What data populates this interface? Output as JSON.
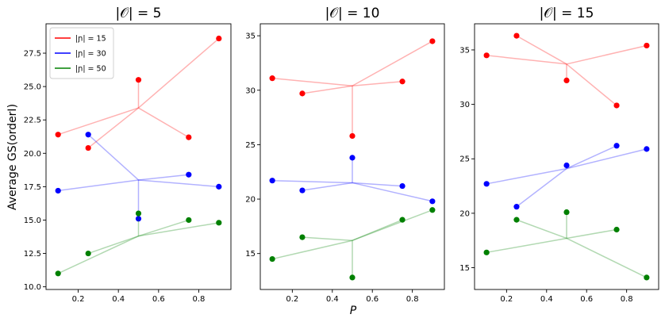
{
  "chart_data": {
    "type": "scatter",
    "xlabel": "P",
    "ylabel": "Average GS(orderI)",
    "legend": {
      "placement": "top-left",
      "entries": [
        {
          "label": "|ɲ| = 15",
          "color": "#ff0000"
        },
        {
          "label": "|ɲ| = 30",
          "color": "#0000ff"
        },
        {
          "label": "|ɲ| = 50",
          "color": "#008000"
        }
      ]
    },
    "colors": {
      "red": "#ff0000",
      "blue": "#0000ff",
      "green": "#008000"
    },
    "panels": [
      {
        "title": "|𝒪| = 5",
        "xlim": [
          0.04,
          0.96
        ],
        "ylim": [
          9.8,
          29.7
        ],
        "xticks": [
          0.2,
          0.4,
          0.6,
          0.8
        ],
        "xtick_labels": [
          "0.2",
          "0.4",
          "0.6",
          "0.8"
        ],
        "yticks": [
          10.0,
          12.5,
          15.0,
          17.5,
          20.0,
          22.5,
          25.0,
          27.5
        ],
        "ytick_labels": [
          "10.0",
          "12.5",
          "15.0",
          "17.5",
          "20.0",
          "22.5",
          "25.0",
          "27.5"
        ],
        "series": [
          {
            "name": "|ɲ| = 15",
            "color": "red",
            "hub": [
              0.5,
              23.4
            ],
            "points": [
              [
                0.1,
                21.4
              ],
              [
                0.25,
                20.4
              ],
              [
                0.5,
                25.5
              ],
              [
                0.75,
                21.2
              ],
              [
                0.9,
                28.6
              ]
            ]
          },
          {
            "name": "|ɲ| = 30",
            "color": "blue",
            "hub": [
              0.5,
              18.0
            ],
            "points": [
              [
                0.1,
                17.2
              ],
              [
                0.25,
                21.4
              ],
              [
                0.5,
                15.1
              ],
              [
                0.75,
                18.4
              ],
              [
                0.9,
                17.5
              ]
            ]
          },
          {
            "name": "|ɲ| = 50",
            "color": "green",
            "hub": [
              0.5,
              13.8
            ],
            "points": [
              [
                0.1,
                11.0
              ],
              [
                0.25,
                12.5
              ],
              [
                0.5,
                15.5
              ],
              [
                0.75,
                15.0
              ],
              [
                0.9,
                14.8
              ]
            ]
          }
        ]
      },
      {
        "title": "|𝒪| = 10",
        "xlim": [
          0.04,
          0.96
        ],
        "ylim": [
          11.7,
          36.1
        ],
        "xticks": [
          0.2,
          0.4,
          0.6,
          0.8
        ],
        "xtick_labels": [
          "0.2",
          "0.4",
          "0.6",
          "0.8"
        ],
        "yticks": [
          15,
          20,
          25,
          30,
          35
        ],
        "ytick_labels": [
          "15",
          "20",
          "25",
          "30",
          "35"
        ],
        "series": [
          {
            "name": "|ɲ| = 15",
            "color": "red",
            "hub": [
              0.5,
              30.4
            ],
            "points": [
              [
                0.1,
                31.1
              ],
              [
                0.25,
                29.7
              ],
              [
                0.5,
                25.8
              ],
              [
                0.75,
                30.8
              ],
              [
                0.9,
                34.5
              ]
            ]
          },
          {
            "name": "|ɲ| = 30",
            "color": "blue",
            "hub": [
              0.5,
              21.5
            ],
            "points": [
              [
                0.1,
                21.7
              ],
              [
                0.25,
                20.8
              ],
              [
                0.5,
                23.8
              ],
              [
                0.75,
                21.2
              ],
              [
                0.9,
                19.8
              ]
            ]
          },
          {
            "name": "|ɲ| = 50",
            "color": "green",
            "hub": [
              0.5,
              16.2
            ],
            "points": [
              [
                0.1,
                14.5
              ],
              [
                0.25,
                16.5
              ],
              [
                0.5,
                12.8
              ],
              [
                0.75,
                18.1
              ],
              [
                0.9,
                19.0
              ]
            ]
          }
        ]
      },
      {
        "title": "|𝒪| = 15",
        "xlim": [
          0.04,
          0.96
        ],
        "ylim": [
          13.0,
          37.4
        ],
        "xticks": [
          0.2,
          0.4,
          0.6,
          0.8
        ],
        "xtick_labels": [
          "0.2",
          "0.4",
          "0.6",
          "0.8"
        ],
        "yticks": [
          15,
          20,
          25,
          30,
          35
        ],
        "ytick_labels": [
          "15",
          "20",
          "25",
          "30",
          "35"
        ],
        "series": [
          {
            "name": "|ɲ| = 15",
            "color": "red",
            "hub": [
              0.5,
              33.7
            ],
            "points": [
              [
                0.1,
                34.5
              ],
              [
                0.25,
                36.3
              ],
              [
                0.5,
                32.2
              ],
              [
                0.75,
                29.9
              ],
              [
                0.9,
                35.4
              ]
            ]
          },
          {
            "name": "|ɲ| = 30",
            "color": "blue",
            "hub": [
              0.5,
              24.1
            ],
            "points": [
              [
                0.1,
                22.7
              ],
              [
                0.25,
                20.6
              ],
              [
                0.5,
                24.4
              ],
              [
                0.75,
                26.2
              ],
              [
                0.9,
                25.9
              ]
            ]
          },
          {
            "name": "|ɲ| = 50",
            "color": "green",
            "hub": [
              0.5,
              17.7
            ],
            "points": [
              [
                0.1,
                16.4
              ],
              [
                0.25,
                19.4
              ],
              [
                0.5,
                20.1
              ],
              [
                0.75,
                18.5
              ],
              [
                0.9,
                14.1
              ]
            ]
          }
        ]
      }
    ]
  }
}
